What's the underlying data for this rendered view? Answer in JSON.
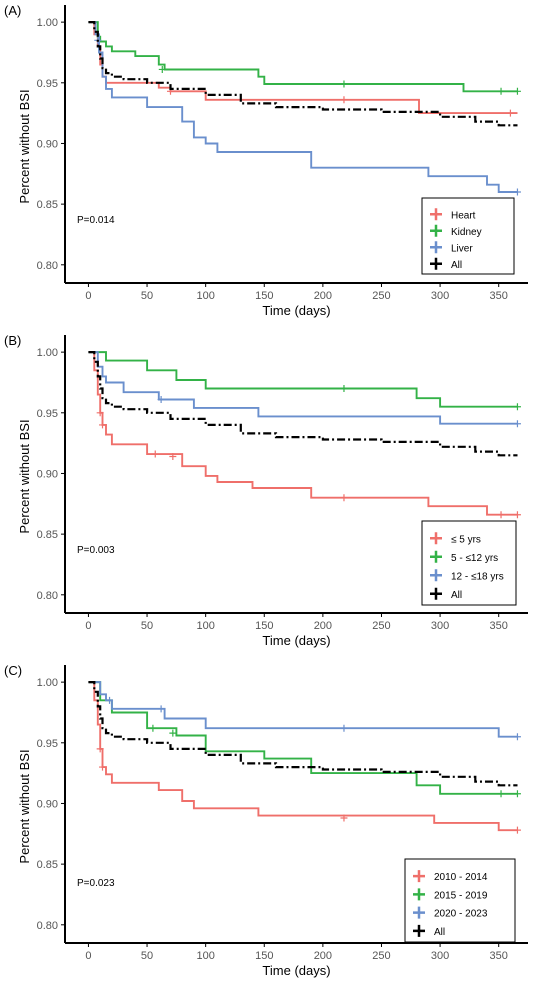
{
  "chart_data": [
    {
      "type": "line",
      "panel_label": "(A)",
      "xlabel": "Time (days)",
      "ylabel": "Percent without BSI",
      "annotation": "P=0.014",
      "xlim": [
        -20,
        375
      ],
      "ylim": [
        0.785,
        1.01
      ],
      "x_ticks": [
        0,
        50,
        100,
        150,
        200,
        250,
        300,
        350
      ],
      "y_ticks": [
        0.8,
        0.85,
        0.9,
        0.95,
        1.0
      ],
      "y_tick_labels": [
        "0.80",
        "0.85",
        "0.90",
        "0.95",
        "1.00"
      ],
      "legend_position": "bottom-right",
      "series": [
        {
          "name": "Heart",
          "color": "#ef6f6a",
          "dash": false,
          "x": [
            0,
            5,
            8,
            10,
            12,
            15,
            20,
            60,
            70,
            100,
            280,
            282,
            366
          ],
          "y": [
            1.0,
            0.99,
            0.98,
            0.965,
            0.955,
            0.95,
            0.95,
            0.946,
            0.943,
            0.936,
            0.936,
            0.925,
            0.925
          ],
          "censor_x": [
            70,
            218,
            360
          ],
          "censor_y": [
            0.943,
            0.936,
            0.925
          ]
        },
        {
          "name": "Kidney",
          "color": "#33b247",
          "dash": false,
          "x": [
            0,
            8,
            10,
            15,
            20,
            40,
            60,
            65,
            145,
            150,
            220,
            320,
            366
          ],
          "y": [
            1.0,
            0.988,
            0.984,
            0.98,
            0.976,
            0.972,
            0.965,
            0.961,
            0.955,
            0.949,
            0.949,
            0.943,
            0.943
          ],
          "censor_x": [
            63,
            218,
            352,
            366
          ],
          "censor_y": [
            0.961,
            0.949,
            0.943,
            0.943
          ]
        },
        {
          "name": "Liver",
          "color": "#6a8fcd",
          "dash": false,
          "x": [
            0,
            6,
            9,
            12,
            15,
            20,
            50,
            80,
            90,
            100,
            110,
            190,
            290,
            340,
            350,
            366
          ],
          "y": [
            1.0,
            0.99,
            0.975,
            0.955,
            0.945,
            0.938,
            0.93,
            0.918,
            0.905,
            0.9,
            0.893,
            0.88,
            0.873,
            0.866,
            0.86,
            0.86
          ],
          "censor_x": [
            8,
            366
          ],
          "censor_y": [
            0.985,
            0.86
          ]
        },
        {
          "name": "All",
          "color": "#000000",
          "dash": true,
          "x": [
            0,
            5,
            8,
            10,
            12,
            15,
            20,
            30,
            50,
            70,
            100,
            130,
            160,
            200,
            250,
            300,
            330,
            350,
            366
          ],
          "y": [
            1.0,
            0.992,
            0.98,
            0.97,
            0.962,
            0.958,
            0.955,
            0.953,
            0.95,
            0.945,
            0.94,
            0.933,
            0.93,
            0.928,
            0.926,
            0.922,
            0.918,
            0.915,
            0.915
          ],
          "censor_x": [],
          "censor_y": []
        }
      ]
    },
    {
      "type": "line",
      "panel_label": "(B)",
      "xlabel": "Time (days)",
      "ylabel": "Percent without BSI",
      "annotation": "P=0.003",
      "xlim": [
        -20,
        375
      ],
      "ylim": [
        0.785,
        1.01
      ],
      "x_ticks": [
        0,
        50,
        100,
        150,
        200,
        250,
        300,
        350
      ],
      "y_ticks": [
        0.8,
        0.85,
        0.9,
        0.95,
        1.0
      ],
      "y_tick_labels": [
        "0.80",
        "0.85",
        "0.90",
        "0.95",
        "1.00"
      ],
      "legend_position": "bottom-right",
      "series": [
        {
          "name": "≤ 5 yrs",
          "color": "#ef6f6a",
          "dash": false,
          "x": [
            0,
            5,
            8,
            10,
            12,
            15,
            20,
            50,
            80,
            100,
            110,
            140,
            190,
            290,
            340,
            350,
            366
          ],
          "y": [
            1.0,
            0.985,
            0.965,
            0.95,
            0.94,
            0.932,
            0.924,
            0.916,
            0.906,
            0.898,
            0.893,
            0.888,
            0.88,
            0.873,
            0.866,
            0.866,
            0.866
          ],
          "censor_x": [
            10,
            12,
            57,
            72,
            218,
            352,
            366
          ],
          "censor_y": [
            0.95,
            0.94,
            0.916,
            0.914,
            0.88,
            0.866,
            0.866
          ]
        },
        {
          "name": "5 - ≤12 yrs",
          "color": "#33b247",
          "dash": false,
          "x": [
            0,
            15,
            50,
            75,
            100,
            280,
            300,
            366
          ],
          "y": [
            1.0,
            0.993,
            0.985,
            0.977,
            0.97,
            0.962,
            0.955,
            0.955
          ],
          "censor_x": [
            218,
            366
          ],
          "censor_y": [
            0.97,
            0.955
          ]
        },
        {
          "name": "12 - ≤18 yrs",
          "color": "#6a8fcd",
          "dash": false,
          "x": [
            0,
            8,
            12,
            15,
            30,
            60,
            90,
            145,
            300,
            366
          ],
          "y": [
            1.0,
            0.988,
            0.98,
            0.975,
            0.967,
            0.961,
            0.954,
            0.947,
            0.941,
            0.941
          ],
          "censor_x": [
            62,
            366
          ],
          "censor_y": [
            0.961,
            0.941
          ]
        },
        {
          "name": "All",
          "color": "#000000",
          "dash": true,
          "x": [
            0,
            5,
            8,
            10,
            12,
            15,
            20,
            30,
            50,
            70,
            100,
            130,
            160,
            200,
            250,
            300,
            330,
            350,
            366
          ],
          "y": [
            1.0,
            0.992,
            0.98,
            0.97,
            0.962,
            0.958,
            0.955,
            0.953,
            0.95,
            0.945,
            0.94,
            0.933,
            0.93,
            0.928,
            0.926,
            0.922,
            0.918,
            0.915,
            0.915
          ],
          "censor_x": [],
          "censor_y": []
        }
      ]
    },
    {
      "type": "line",
      "panel_label": "(C)",
      "xlabel": "Time (days)",
      "ylabel": "Percent without BSI",
      "annotation": "P=0.023",
      "xlim": [
        -20,
        375
      ],
      "ylim": [
        0.785,
        1.01
      ],
      "x_ticks": [
        0,
        50,
        100,
        150,
        200,
        250,
        300,
        350
      ],
      "y_ticks": [
        0.8,
        0.85,
        0.9,
        0.95,
        1.0
      ],
      "y_tick_labels": [
        "0.80",
        "0.85",
        "0.90",
        "0.95",
        "1.00"
      ],
      "legend_position": "bottom-right",
      "series": [
        {
          "name": "2010 - 2014",
          "color": "#ef6f6a",
          "dash": false,
          "x": [
            0,
            5,
            8,
            10,
            12,
            15,
            20,
            60,
            80,
            90,
            145,
            295,
            350,
            366
          ],
          "y": [
            1.0,
            0.985,
            0.965,
            0.945,
            0.93,
            0.924,
            0.917,
            0.911,
            0.902,
            0.896,
            0.89,
            0.884,
            0.878,
            0.878
          ],
          "censor_x": [
            10,
            12,
            218,
            366
          ],
          "censor_y": [
            0.945,
            0.93,
            0.888,
            0.878
          ]
        },
        {
          "name": "2015 - 2019",
          "color": "#33b247",
          "dash": false,
          "x": [
            0,
            10,
            20,
            50,
            75,
            100,
            150,
            190,
            280,
            300,
            366
          ],
          "y": [
            1.0,
            0.985,
            0.975,
            0.962,
            0.956,
            0.943,
            0.937,
            0.925,
            0.915,
            0.908,
            0.908
          ],
          "censor_x": [
            55,
            72,
            352,
            366
          ],
          "censor_y": [
            0.962,
            0.958,
            0.908,
            0.908
          ]
        },
        {
          "name": "2020 - 2023",
          "color": "#6a8fcd",
          "dash": false,
          "x": [
            0,
            10,
            15,
            20,
            65,
            100,
            350,
            366
          ],
          "y": [
            1.0,
            0.99,
            0.985,
            0.978,
            0.97,
            0.962,
            0.955,
            0.955
          ],
          "censor_x": [
            18,
            62,
            218,
            366
          ],
          "censor_y": [
            0.985,
            0.978,
            0.962,
            0.955
          ]
        },
        {
          "name": "All",
          "color": "#000000",
          "dash": true,
          "x": [
            0,
            5,
            8,
            10,
            12,
            15,
            20,
            30,
            50,
            70,
            100,
            130,
            160,
            200,
            250,
            300,
            330,
            350,
            366
          ],
          "y": [
            1.0,
            0.992,
            0.98,
            0.97,
            0.962,
            0.958,
            0.955,
            0.953,
            0.95,
            0.945,
            0.94,
            0.933,
            0.93,
            0.928,
            0.926,
            0.922,
            0.918,
            0.915,
            0.915
          ],
          "censor_x": [],
          "censor_y": []
        }
      ]
    }
  ]
}
